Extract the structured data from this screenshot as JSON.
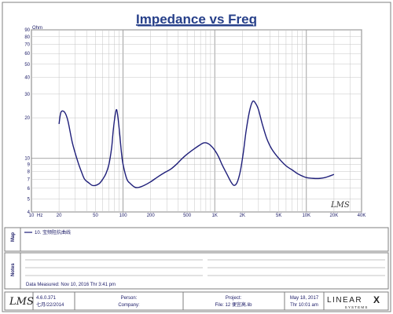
{
  "chart_data": {
    "type": "line",
    "title": "Impedance vs Freq",
    "ylabel": "Ohm",
    "x_scale": "log",
    "y_scale": "log",
    "xlim": [
      10,
      40000
    ],
    "ylim": [
      4,
      90
    ],
    "x_ticks": [
      {
        "value": 10,
        "label": "10"
      },
      {
        "value": 20,
        "label": "20"
      },
      {
        "value": 50,
        "label": "50"
      },
      {
        "value": 100,
        "label": "100"
      },
      {
        "value": 200,
        "label": "200"
      },
      {
        "value": 500,
        "label": "500"
      },
      {
        "value": 1000,
        "label": "1K"
      },
      {
        "value": 2000,
        "label": "2K"
      },
      {
        "value": 5000,
        "label": "5K"
      },
      {
        "value": 10000,
        "label": "10K"
      },
      {
        "value": 20000,
        "label": "20K"
      },
      {
        "value": 40000,
        "label": "40K"
      }
    ],
    "x_unit": "Hz",
    "y_ticks": [
      {
        "value": 4,
        "label": "4"
      },
      {
        "value": 5,
        "label": "5"
      },
      {
        "value": 6,
        "label": "6"
      },
      {
        "value": 7,
        "label": "7"
      },
      {
        "value": 8,
        "label": "8"
      },
      {
        "value": 9,
        "label": "9"
      },
      {
        "value": 10,
        "label": "10"
      },
      {
        "value": 20,
        "label": "20"
      },
      {
        "value": 30,
        "label": "30"
      },
      {
        "value": 40,
        "label": "40"
      },
      {
        "value": 50,
        "label": "50"
      },
      {
        "value": 60,
        "label": "60"
      },
      {
        "value": 70,
        "label": "70"
      },
      {
        "value": 80,
        "label": "80"
      },
      {
        "value": 90,
        "label": "90"
      }
    ],
    "grid": true,
    "series": [
      {
        "name": "10. 宝频阻抗曲线",
        "color": "#1f1f7a",
        "points": [
          [
            20,
            18
          ],
          [
            21,
            22
          ],
          [
            23,
            22
          ],
          [
            25,
            19
          ],
          [
            28,
            13
          ],
          [
            32,
            9.5
          ],
          [
            35,
            8
          ],
          [
            38,
            7
          ],
          [
            42,
            6.6
          ],
          [
            46,
            6.3
          ],
          [
            50,
            6.3
          ],
          [
            55,
            6.5
          ],
          [
            60,
            7
          ],
          [
            65,
            7.7
          ],
          [
            70,
            9
          ],
          [
            75,
            12
          ],
          [
            78,
            16
          ],
          [
            82,
            21
          ],
          [
            85,
            23
          ],
          [
            88,
            20
          ],
          [
            92,
            15
          ],
          [
            96,
            11
          ],
          [
            100,
            9
          ],
          [
            110,
            7
          ],
          [
            120,
            6.5
          ],
          [
            135,
            6.1
          ],
          [
            150,
            6.1
          ],
          [
            170,
            6.3
          ],
          [
            200,
            6.7
          ],
          [
            240,
            7.3
          ],
          [
            280,
            7.8
          ],
          [
            330,
            8.3
          ],
          [
            380,
            9
          ],
          [
            430,
            9.8
          ],
          [
            480,
            10.5
          ],
          [
            540,
            11.2
          ],
          [
            600,
            11.8
          ],
          [
            680,
            12.5
          ],
          [
            750,
            13
          ],
          [
            820,
            13
          ],
          [
            900,
            12.5
          ],
          [
            1000,
            11.5
          ],
          [
            1100,
            10.3
          ],
          [
            1200,
            9
          ],
          [
            1350,
            7.7
          ],
          [
            1500,
            6.7
          ],
          [
            1620,
            6.3
          ],
          [
            1750,
            6.6
          ],
          [
            1900,
            8
          ],
          [
            2050,
            11
          ],
          [
            2200,
            16
          ],
          [
            2400,
            22.5
          ],
          [
            2600,
            26.5
          ],
          [
            2800,
            25.5
          ],
          [
            3000,
            23
          ],
          [
            3300,
            18
          ],
          [
            3700,
            14
          ],
          [
            4200,
            11.7
          ],
          [
            5000,
            10
          ],
          [
            6000,
            8.8
          ],
          [
            7000,
            8.2
          ],
          [
            8000,
            7.7
          ],
          [
            9000,
            7.4
          ],
          [
            10000,
            7.2
          ],
          [
            12000,
            7.1
          ],
          [
            14000,
            7.1
          ],
          [
            16000,
            7.2
          ],
          [
            18000,
            7.4
          ],
          [
            20000,
            7.6
          ]
        ]
      }
    ],
    "legend_placement": "map-panel"
  },
  "logo_text": "LMS",
  "map_label": "Map",
  "legend_entry": "10. 宝频阻抗曲线",
  "notes_label": "Notes",
  "data_measured": "Data Measured: Nov 10, 2016  Thr  3:41 pm",
  "footer": {
    "version": "4.6.0.371",
    "version_date": "七月/22/2014",
    "person_label": "Person:",
    "company_label": "Company:",
    "project_label": "Project:",
    "file_label": "File: 12 便宜高.lib",
    "date": "May 18, 2017",
    "time": "Thr 10:01 am",
    "brand_text": "LINEAR",
    "brand_sub": "S Y S T E M S",
    "brand_x": "X"
  }
}
